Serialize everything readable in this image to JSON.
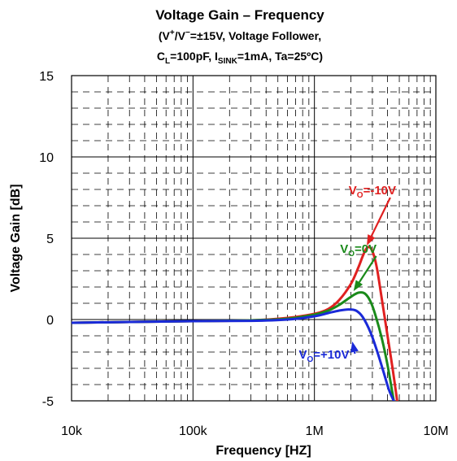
{
  "chart_data": {
    "type": "line",
    "title": "Voltage Gain – Frequency",
    "subtitle_line1": "(V+/V−=±15V, Voltage Follower,",
    "subtitle_line2": "CL=100pF, ISINK=1mA, Ta=25ºC)",
    "subtitle": {
      "l1_a": "(V",
      "l1_sup1": "+",
      "l1_b": "/V",
      "l1_sup2": "−",
      "l1_c": "=±15V, Voltage Follower,",
      "l2_a": "C",
      "l2_sub1": "L",
      "l2_b": "=100pF, I",
      "l2_sub2": "SINK",
      "l2_c": "=1mA, Ta=25ºC)"
    },
    "xlabel": "Frequency [HZ]",
    "ylabel": "Voltage Gain [dB]",
    "x_scale": "log",
    "xlim": [
      10000,
      10000000
    ],
    "ylim": [
      -5,
      15
    ],
    "x_ticks": [
      {
        "value": 10000,
        "label": "10k"
      },
      {
        "value": 100000,
        "label": "100k"
      },
      {
        "value": 1000000,
        "label": "1M"
      },
      {
        "value": 10000000,
        "label": "10M"
      }
    ],
    "y_ticks": [
      {
        "value": 15,
        "label": "15"
      },
      {
        "value": 10,
        "label": "10"
      },
      {
        "value": 5,
        "label": "5"
      },
      {
        "value": 0,
        "label": "0"
      },
      {
        "value": -5,
        "label": "-5"
      }
    ],
    "grid": "major solid, minor dashed",
    "series": [
      {
        "name": "VO=-10V",
        "label_main": "V",
        "label_sub": "O",
        "label_rest": "=-10V",
        "color": "#e02020",
        "x": [
          10000,
          30000,
          100000,
          300000,
          600000,
          1000000,
          1300000,
          1600000,
          2000000,
          2300000,
          2500000,
          2700000,
          2900000,
          3100000,
          3300000,
          3600000,
          4000000,
          4400000,
          4800000
        ],
        "y": [
          -0.2,
          -0.15,
          -0.1,
          -0.05,
          0.1,
          0.35,
          0.65,
          1.2,
          2.2,
          3.2,
          3.9,
          4.4,
          4.4,
          3.9,
          3.0,
          1.2,
          -1.0,
          -3.0,
          -5.0
        ]
      },
      {
        "name": "VO=0V",
        "label_main": "V",
        "label_sub": "O",
        "label_rest": "=0V",
        "color": "#1a8a1a",
        "x": [
          10000,
          30000,
          100000,
          300000,
          600000,
          1000000,
          1300000,
          1600000,
          2000000,
          2300000,
          2600000,
          2900000,
          3200000,
          3600000,
          4000000,
          4500000
        ],
        "y": [
          -0.2,
          -0.15,
          -0.1,
          -0.05,
          0.05,
          0.3,
          0.55,
          0.9,
          1.4,
          1.65,
          1.6,
          1.1,
          0.2,
          -1.2,
          -2.8,
          -5.0
        ]
      },
      {
        "name": "VO=+10V",
        "label_main": "V",
        "label_sub": "O",
        "label_rest": "=+10V",
        "color": "#1a2ad8",
        "x": [
          10000,
          30000,
          100000,
          300000,
          600000,
          1000000,
          1300000,
          1600000,
          1900000,
          2200000,
          2500000,
          2900000,
          3300000,
          3700000,
          4100000,
          4500000
        ],
        "y": [
          -0.2,
          -0.15,
          -0.1,
          -0.08,
          0.0,
          0.2,
          0.4,
          0.55,
          0.62,
          0.55,
          0.15,
          -0.8,
          -2.0,
          -3.2,
          -4.3,
          -5.0
        ]
      }
    ],
    "annotations": [
      {
        "series": 0,
        "text_x": 3000000,
        "text_y": 7.7,
        "arrow_to_x": 2700000,
        "arrow_to_y": 4.55
      },
      {
        "series": 1,
        "text_x": 2300000,
        "text_y": 4.1,
        "arrow_to_x": 2100000,
        "arrow_to_y": 1.75
      },
      {
        "series": 2,
        "text_x": 1200000,
        "text_y": -2.4,
        "arrow_to_x": 2050000,
        "arrow_to_y": -1.35
      }
    ]
  }
}
